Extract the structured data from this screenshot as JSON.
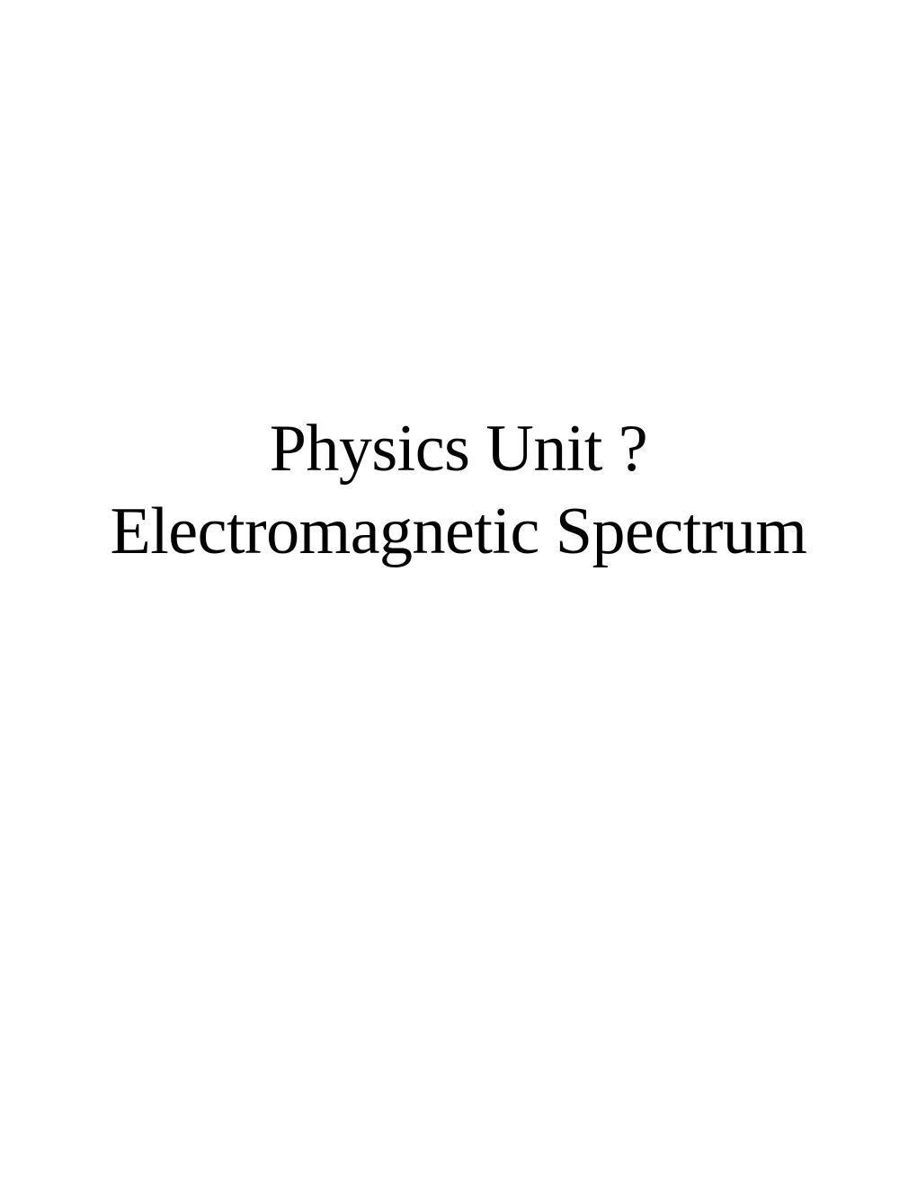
{
  "slide": {
    "title_line1": "Physics Unit ?",
    "title_line2": "Electromagnetic Spectrum",
    "text_color": "#000000",
    "background_color": "#ffffff",
    "font_family": "Times New Roman",
    "font_size_pt": 56,
    "font_weight": "normal",
    "alignment": "center"
  }
}
